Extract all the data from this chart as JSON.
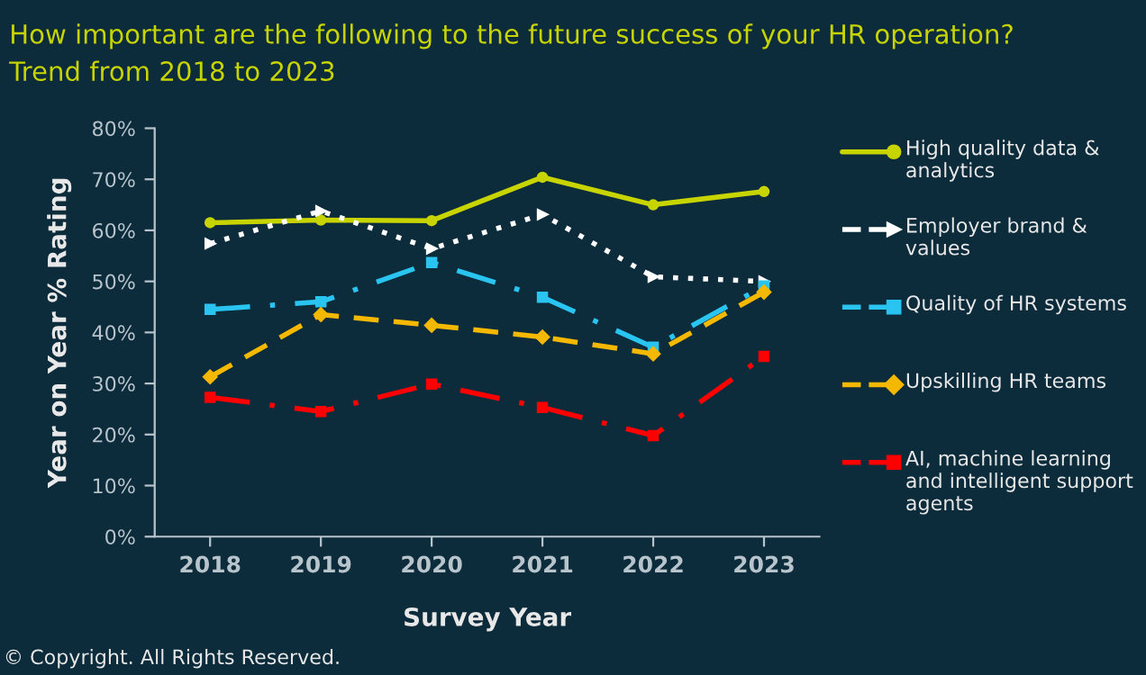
{
  "chart_data": {
    "type": "line",
    "title": "How important are the following to the future success of your HR operation?",
    "subtitle": "Trend from 2018 to 2023",
    "xlabel": "Survey Year",
    "ylabel": "Year on Year % Rating",
    "categories": [
      "2018",
      "2019",
      "2020",
      "2021",
      "2022",
      "2023"
    ],
    "series": [
      {
        "name": "High quality data & analytics",
        "color": "#c8d400",
        "marker": "circle",
        "line_style": "solid",
        "values": [
          61.5,
          62.0,
          61.9,
          70.4,
          65.0,
          67.6
        ]
      },
      {
        "name": "Employer brand & values",
        "color": "#ffffff",
        "marker": "triangle",
        "line_style": "dotted",
        "values": [
          57.4,
          63.8,
          56.4,
          63.1,
          50.9,
          50.0
        ]
      },
      {
        "name": "Quality of HR systems",
        "color": "#29c4f0",
        "marker": "square",
        "line_style": "dashdot",
        "values": [
          44.5,
          46.0,
          53.7,
          46.9,
          37.1,
          49.1
        ]
      },
      {
        "name": "Upskilling HR teams",
        "color": "#f5b800",
        "marker": "diamond",
        "line_style": "dashed",
        "values": [
          31.3,
          43.5,
          41.4,
          39.1,
          35.8,
          47.9
        ]
      },
      {
        "name": "AI, machine learning and intelligent support agents",
        "color": "#ff0000",
        "marker": "square",
        "line_style": "dashdot",
        "values": [
          27.3,
          24.5,
          29.9,
          25.3,
          19.8,
          35.3
        ]
      }
    ],
    "ylim": [
      0,
      80
    ],
    "yticks": [
      {
        "value": 0,
        "label": "0%"
      },
      {
        "value": 10,
        "label": "10%"
      },
      {
        "value": 20,
        "label": "20%"
      },
      {
        "value": 30,
        "label": "30%"
      },
      {
        "value": 40,
        "label": "40%"
      },
      {
        "value": 50,
        "label": "50%"
      },
      {
        "value": 60,
        "label": "60%"
      },
      {
        "value": 70,
        "label": "70%"
      },
      {
        "value": 80,
        "label": "80%"
      }
    ],
    "grid": false,
    "legend": "right",
    "annotations": [
      "© Copyright. All Rights Reserved."
    ]
  }
}
